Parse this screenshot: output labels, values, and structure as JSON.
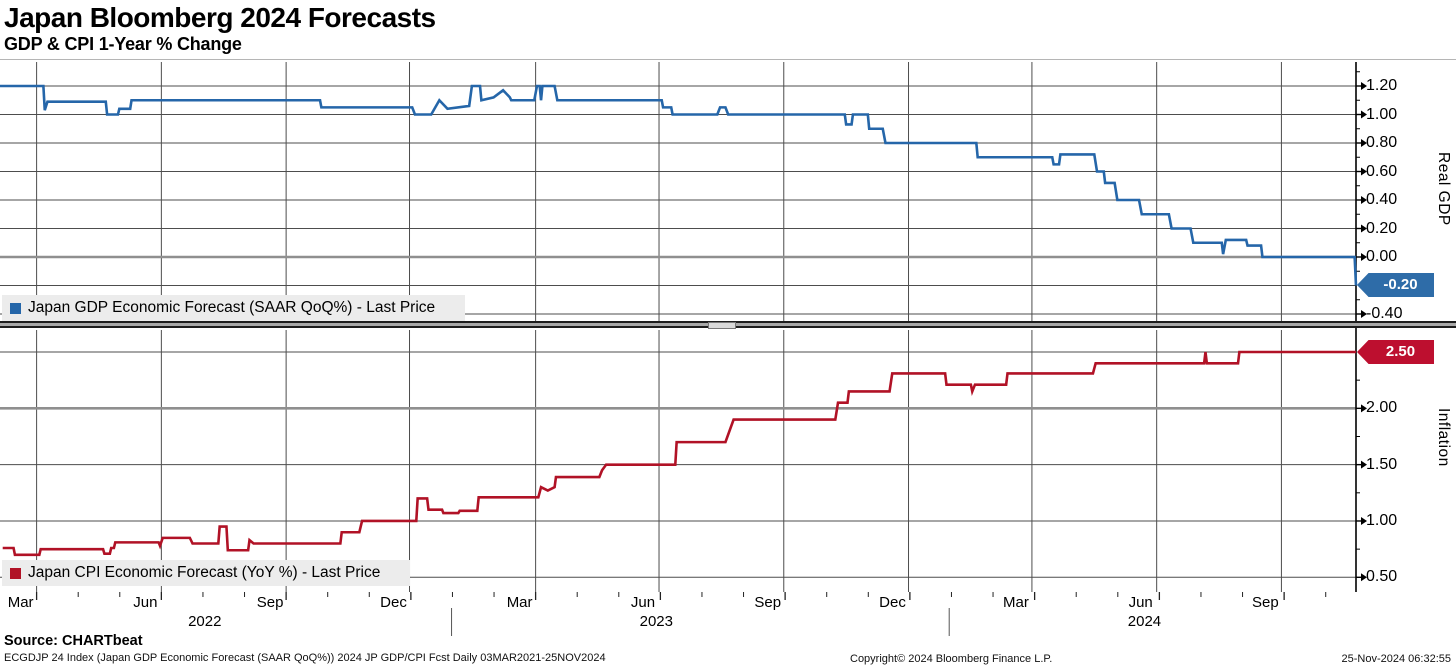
{
  "header": {
    "title": "Japan Bloomberg 2024 Forecasts",
    "subtitle": "GDP & CPI 1-Year % Change"
  },
  "footer": {
    "source": "Source: CHARTbeat",
    "description": "ECGDJP 24 Index (Japan GDP Economic Forecast (SAAR QoQ%)) 2024 JP GDP/CPI Fcst  Daily 03MAR2021-25NOV2024",
    "copyright": "Copyright© 2024 Bloomberg Finance L.P.",
    "timestamp": "25-Nov-2024 06:32:55"
  },
  "chart_data": {
    "type": "line",
    "title": "Japan Bloomberg 2024 Forecasts",
    "subtitle": "GDP & CPI 1-Year % Change",
    "grid": true,
    "legend_position": "bottom-left inside each panel",
    "x_axis": {
      "period": "Daily 03MAR2021-25NOV2024",
      "ticks": [
        {
          "label": "Mar",
          "pct": 2.7
        },
        {
          "label": "Jun",
          "pct": 11.9
        },
        {
          "label": "Sep",
          "pct": 21.1
        },
        {
          "label": "Dec",
          "pct": 30.2
        },
        {
          "label": "Mar",
          "pct": 39.5
        },
        {
          "label": "Jun",
          "pct": 48.6
        },
        {
          "label": "Sep",
          "pct": 57.8
        },
        {
          "label": "Dec",
          "pct": 67.0
        },
        {
          "label": "Mar",
          "pct": 76.1
        },
        {
          "label": "Jun",
          "pct": 85.3
        },
        {
          "label": "Sep",
          "pct": 94.5
        }
      ],
      "years": [
        {
          "label": "2022",
          "pct": 15.1
        },
        {
          "label": "2023",
          "pct": 48.4
        },
        {
          "label": "2024",
          "pct": 84.4
        }
      ],
      "year_divider_pct": [
        33.3,
        70.0
      ]
    },
    "panels": [
      {
        "axis_title": "Real GDP",
        "legend_label": "Japan GDP Economic Forecast (SAAR QoQ%) - Last Price",
        "line_color": "#2566a9",
        "tag_color": "#2e6ca8",
        "last_price": "-0.20",
        "ylim": [
          -0.46,
          1.37
        ],
        "emphasis_value": 0.0,
        "y_ticks": [
          {
            "label": "1.20",
            "v": 1.2
          },
          {
            "label": "1.00",
            "v": 1.0
          },
          {
            "label": "0.80",
            "v": 0.8
          },
          {
            "label": "0.60",
            "v": 0.6
          },
          {
            "label": "0.40",
            "v": 0.4
          },
          {
            "label": "0.20",
            "v": 0.2
          },
          {
            "label": "0.00",
            "v": 0.0
          },
          {
            "label": "-0.20",
            "v": -0.2,
            "tagged": true
          },
          {
            "label": "-0.40",
            "v": -0.4
          }
        ],
        "points": [
          [
            0,
            1.2
          ],
          [
            3.2,
            1.2
          ],
          [
            3.3,
            1.03
          ],
          [
            3.5,
            1.09
          ],
          [
            7.8,
            1.09
          ],
          [
            7.9,
            1.0
          ],
          [
            8.7,
            1.0
          ],
          [
            8.8,
            1.04
          ],
          [
            9.6,
            1.04
          ],
          [
            9.7,
            1.1
          ],
          [
            23.6,
            1.1
          ],
          [
            23.7,
            1.05
          ],
          [
            30.4,
            1.05
          ],
          [
            30.6,
            1.0
          ],
          [
            31.8,
            1.0
          ],
          [
            32.4,
            1.1
          ],
          [
            33.0,
            1.04
          ],
          [
            34.6,
            1.06
          ],
          [
            34.8,
            1.2
          ],
          [
            35.4,
            1.2
          ],
          [
            35.5,
            1.1
          ],
          [
            36.4,
            1.12
          ],
          [
            37.1,
            1.17
          ],
          [
            37.6,
            1.12
          ],
          [
            37.7,
            1.1
          ],
          [
            39.4,
            1.1
          ],
          [
            39.6,
            1.2
          ],
          [
            39.8,
            1.2
          ],
          [
            39.9,
            1.1
          ],
          [
            40.0,
            1.2
          ],
          [
            40.9,
            1.2
          ],
          [
            41.1,
            1.1
          ],
          [
            48.8,
            1.1
          ],
          [
            48.9,
            1.05
          ],
          [
            49.5,
            1.05
          ],
          [
            49.6,
            1.0
          ],
          [
            52.9,
            1.0
          ],
          [
            53.1,
            1.05
          ],
          [
            53.5,
            1.05
          ],
          [
            53.7,
            1.0
          ],
          [
            62.3,
            1.0
          ],
          [
            62.4,
            0.93
          ],
          [
            62.8,
            0.93
          ],
          [
            62.9,
            1.0
          ],
          [
            64.0,
            1.0
          ],
          [
            64.1,
            0.9
          ],
          [
            65.1,
            0.9
          ],
          [
            65.3,
            0.8
          ],
          [
            72.0,
            0.8
          ],
          [
            72.1,
            0.7
          ],
          [
            77.6,
            0.7
          ],
          [
            77.7,
            0.65
          ],
          [
            78.1,
            0.65
          ],
          [
            78.2,
            0.72
          ],
          [
            80.7,
            0.72
          ],
          [
            80.9,
            0.6
          ],
          [
            81.4,
            0.6
          ],
          [
            81.5,
            0.52
          ],
          [
            82.2,
            0.52
          ],
          [
            82.4,
            0.4
          ],
          [
            84.0,
            0.4
          ],
          [
            84.2,
            0.3
          ],
          [
            86.2,
            0.3
          ],
          [
            86.4,
            0.2
          ],
          [
            87.8,
            0.2
          ],
          [
            88.0,
            0.1
          ],
          [
            90.1,
            0.1
          ],
          [
            90.2,
            0.02
          ],
          [
            90.4,
            0.12
          ],
          [
            91.9,
            0.12
          ],
          [
            92.0,
            0.08
          ],
          [
            93.0,
            0.08
          ],
          [
            93.1,
            0.0
          ],
          [
            99.9,
            0.0
          ],
          [
            100,
            -0.2
          ]
        ]
      },
      {
        "axis_title": "Inflation",
        "legend_label": "Japan CPI Economic Forecast (YoY %) - Last Price",
        "line_color": "#b11226",
        "tag_color": "#bd0f2f",
        "last_price": "2.50",
        "ylim": [
          0.37,
          2.7
        ],
        "emphasis_value": 2.0,
        "y_ticks": [
          {
            "label": "2.50",
            "v": 2.5,
            "tagged": true
          },
          {
            "label": "2.00",
            "v": 2.0
          },
          {
            "label": "1.50",
            "v": 1.5
          },
          {
            "label": "1.00",
            "v": 1.0
          },
          {
            "label": "0.50",
            "v": 0.5
          }
        ],
        "points": [
          [
            0.2,
            0.76
          ],
          [
            1.0,
            0.76
          ],
          [
            1.1,
            0.7
          ],
          [
            2.9,
            0.7
          ],
          [
            3.0,
            0.75
          ],
          [
            7.6,
            0.75
          ],
          [
            7.7,
            0.71
          ],
          [
            8.1,
            0.71
          ],
          [
            8.2,
            0.76
          ],
          [
            8.4,
            0.76
          ],
          [
            8.5,
            0.81
          ],
          [
            11.7,
            0.81
          ],
          [
            11.8,
            0.78
          ],
          [
            12.0,
            0.85
          ],
          [
            14.0,
            0.85
          ],
          [
            14.2,
            0.8
          ],
          [
            16.1,
            0.8
          ],
          [
            16.2,
            0.95
          ],
          [
            16.7,
            0.95
          ],
          [
            16.8,
            0.74
          ],
          [
            18.3,
            0.74
          ],
          [
            18.4,
            0.83
          ],
          [
            18.7,
            0.8
          ],
          [
            25.1,
            0.8
          ],
          [
            25.2,
            0.9
          ],
          [
            26.5,
            0.9
          ],
          [
            26.7,
            1.0
          ],
          [
            30.7,
            1.0
          ],
          [
            30.8,
            1.2
          ],
          [
            31.5,
            1.2
          ],
          [
            31.6,
            1.1
          ],
          [
            32.6,
            1.1
          ],
          [
            32.7,
            1.07
          ],
          [
            33.8,
            1.07
          ],
          [
            33.9,
            1.09
          ],
          [
            35.2,
            1.09
          ],
          [
            35.3,
            1.21
          ],
          [
            39.7,
            1.21
          ],
          [
            39.9,
            1.3
          ],
          [
            40.4,
            1.27
          ],
          [
            40.9,
            1.3
          ],
          [
            41.0,
            1.39
          ],
          [
            44.2,
            1.39
          ],
          [
            44.4,
            1.45
          ],
          [
            44.7,
            1.5
          ],
          [
            49.8,
            1.5
          ],
          [
            49.9,
            1.7
          ],
          [
            53.5,
            1.7
          ],
          [
            54.1,
            1.9
          ],
          [
            61.6,
            1.9
          ],
          [
            61.8,
            2.05
          ],
          [
            62.5,
            2.05
          ],
          [
            62.6,
            2.15
          ],
          [
            65.6,
            2.15
          ],
          [
            65.8,
            2.31
          ],
          [
            69.7,
            2.31
          ],
          [
            69.8,
            2.21
          ],
          [
            71.6,
            2.21
          ],
          [
            71.7,
            2.15
          ],
          [
            71.9,
            2.21
          ],
          [
            74.2,
            2.21
          ],
          [
            74.3,
            2.31
          ],
          [
            80.6,
            2.31
          ],
          [
            80.8,
            2.4
          ],
          [
            88.8,
            2.4
          ],
          [
            88.9,
            2.5
          ],
          [
            89.0,
            2.4
          ],
          [
            91.3,
            2.4
          ],
          [
            91.4,
            2.5
          ],
          [
            100,
            2.5
          ]
        ]
      }
    ]
  }
}
